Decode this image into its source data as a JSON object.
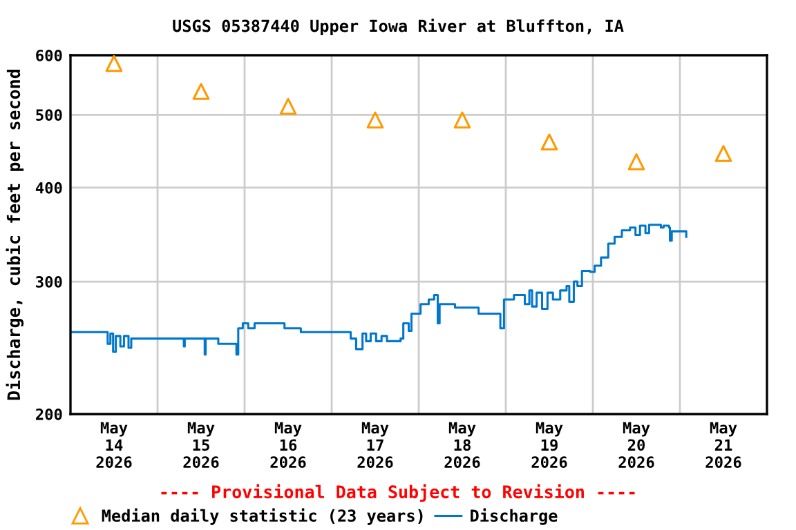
{
  "chart_data": {
    "type": "step",
    "title": "USGS 05387440 Upper Iowa River at Bluffton, IA",
    "ylabel": "Discharge, cubic feet per second",
    "annotations": [
      "---- Provisional Data Subject to Revision ----"
    ],
    "log": "y",
    "grid": true,
    "legend": "bottom",
    "xlim": [
      "2026-05-14",
      "2026-05-22"
    ],
    "ylim": [
      200,
      600
    ],
    "yticks": [
      200,
      300,
      400,
      500,
      600
    ],
    "xticks": [
      {
        "value": "2026-05-14T12:00",
        "label": "May\n14\n2026"
      },
      {
        "value": "2026-05-15T12:00",
        "label": "May\n15\n2026"
      },
      {
        "value": "2026-05-16T12:00",
        "label": "May\n16\n2026"
      },
      {
        "value": "2026-05-17T12:00",
        "label": "May\n17\n2026"
      },
      {
        "value": "2026-05-18T12:00",
        "label": "May\n18\n2026"
      },
      {
        "value": "2026-05-19T12:00",
        "label": "May\n19\n2026"
      },
      {
        "value": "2026-05-20T12:00",
        "label": "May\n20\n2026"
      },
      {
        "value": "2026-05-21T12:00",
        "label": "May\n21\n2026"
      },
      {
        "value": "2026-05-15",
        "label": null
      },
      {
        "value": "2026-05-16",
        "label": null
      },
      {
        "value": "2026-05-17",
        "label": null
      },
      {
        "value": "2026-05-18",
        "label": null
      },
      {
        "value": "2026-05-19",
        "label": null
      },
      {
        "value": "2026-05-20",
        "label": null
      },
      {
        "value": "2026-05-21",
        "label": null
      }
    ],
    "series": [
      {
        "name": "Median daily statistic (23 years)",
        "type": "scatter",
        "marker": "triangle",
        "color": "#ff9900",
        "x": [
          "2026-05-14T12:00",
          "2026-05-15T12:00",
          "2026-05-16T12:00",
          "2026-05-17T12:00",
          "2026-05-18T12:00",
          "2026-05-19T12:00",
          "2026-05-20T12:00",
          "2026-05-21T12:00"
        ],
        "values": [
          585,
          537,
          513,
          492,
          492,
          460,
          433,
          444
        ]
      },
      {
        "name": "Discharge",
        "color": "#0077cc",
        "x": [
          "2026-05-14T00:15",
          "2026-05-14T10:15",
          "2026-05-14T11:00",
          "2026-05-14T11:45",
          "2026-05-14T12:30",
          "2026-05-14T13:45",
          "2026-05-14T14:45",
          "2026-05-14T16:00",
          "2026-05-14T16:45",
          "2026-05-14T18:00",
          "2026-05-15T07:15",
          "2026-05-15T07:30",
          "2026-05-15T07:45",
          "2026-05-15T13:00",
          "2026-05-15T13:15",
          "2026-05-15T13:30",
          "2026-05-15T16:45",
          "2026-05-15T21:45",
          "2026-05-15T22:15",
          "2026-05-15T23:30",
          "2026-05-16T01:00",
          "2026-05-16T02:45",
          "2026-05-16T11:00",
          "2026-05-16T15:30",
          "2026-05-16T19:15",
          "2026-05-17T05:15",
          "2026-05-17T06:45",
          "2026-05-17T08:30",
          "2026-05-17T09:30",
          "2026-05-17T10:45",
          "2026-05-17T12:15",
          "2026-05-17T13:45",
          "2026-05-17T15:15",
          "2026-05-17T19:00",
          "2026-05-17T19:45",
          "2026-05-17T21:15",
          "2026-05-17T22:00",
          "2026-05-18T00:30",
          "2026-05-18T02:45",
          "2026-05-18T04:15",
          "2026-05-18T05:15",
          "2026-05-18T05:45",
          "2026-05-18T10:00",
          "2026-05-18T16:30",
          "2026-05-18T22:30",
          "2026-05-18T23:30",
          "2026-05-19T02:15",
          "2026-05-19T05:15",
          "2026-05-19T06:30",
          "2026-05-19T07:15",
          "2026-05-19T08:30",
          "2026-05-19T10:00",
          "2026-05-19T11:30",
          "2026-05-19T13:00",
          "2026-05-19T15:00",
          "2026-05-19T16:45",
          "2026-05-19T17:30",
          "2026-05-19T18:45",
          "2026-05-19T19:45",
          "2026-05-19T21:00",
          "2026-05-19T23:15",
          "2026-05-20T00:30",
          "2026-05-20T02:15",
          "2026-05-20T04:15",
          "2026-05-20T06:00",
          "2026-05-20T08:00",
          "2026-05-20T10:15",
          "2026-05-20T11:45",
          "2026-05-20T13:00",
          "2026-05-20T14:30",
          "2026-05-20T15:30",
          "2026-05-20T18:45",
          "2026-05-20T19:30",
          "2026-05-20T21:00",
          "2026-05-20T21:15",
          "2026-05-20T21:45",
          "2026-05-21T00:30",
          "2026-05-21T01:45"
        ],
        "values": [
          257,
          248,
          256,
          242,
          254,
          246,
          254,
          245,
          252,
          252,
          246,
          252,
          252,
          240,
          252,
          252,
          248,
          240,
          260,
          264,
          260,
          264,
          260,
          257,
          257,
          252,
          244,
          256,
          250,
          256,
          250,
          254,
          250,
          252,
          264,
          258,
          272,
          280,
          284,
          288,
          264,
          280,
          277,
          272,
          260,
          284,
          288,
          280,
          292,
          278,
          290,
          276,
          290,
          284,
          292,
          296,
          282,
          300,
          296,
          310,
          309,
          315,
          323,
          337,
          344,
          351,
          354,
          346,
          356,
          348,
          357,
          354,
          356,
          354,
          340,
          350,
          350,
          344
        ]
      }
    ]
  }
}
